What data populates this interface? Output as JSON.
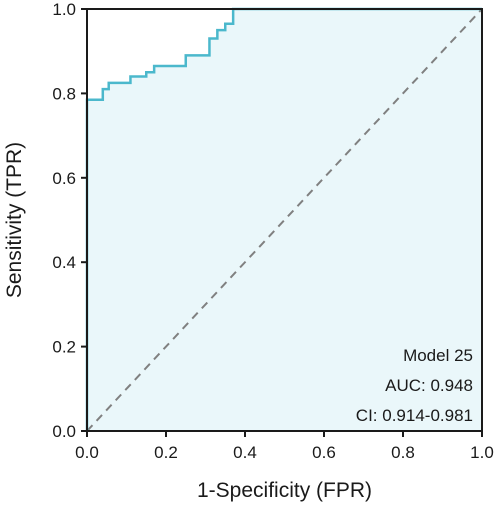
{
  "chart_data": {
    "type": "line",
    "xlabel": "1-Specificity (FPR)",
    "ylabel": "Sensitivity (TPR)",
    "xlim": [
      0,
      1
    ],
    "ylim": [
      0,
      1
    ],
    "x_ticks": [
      "0.0",
      "0.2",
      "0.4",
      "0.6",
      "0.8",
      "1.0"
    ],
    "y_ticks": [
      "0.0",
      "0.2",
      "0.4",
      "0.6",
      "0.8",
      "1.0"
    ],
    "grid": false,
    "series": [
      {
        "name": "",
        "color": "#4bb8cc",
        "fill": "#eaf7fa",
        "points": [
          [
            0.0,
            0.0
          ],
          [
            0.0,
            0.785
          ],
          [
            0.04,
            0.785
          ],
          [
            0.04,
            0.81
          ],
          [
            0.055,
            0.81
          ],
          [
            0.055,
            0.825
          ],
          [
            0.11,
            0.825
          ],
          [
            0.11,
            0.84
          ],
          [
            0.15,
            0.84
          ],
          [
            0.15,
            0.85
          ],
          [
            0.17,
            0.85
          ],
          [
            0.17,
            0.865
          ],
          [
            0.25,
            0.865
          ],
          [
            0.25,
            0.89
          ],
          [
            0.31,
            0.89
          ],
          [
            0.31,
            0.93
          ],
          [
            0.33,
            0.93
          ],
          [
            0.33,
            0.95
          ],
          [
            0.35,
            0.95
          ],
          [
            0.35,
            0.965
          ],
          [
            0.37,
            0.965
          ],
          [
            0.37,
            1.0
          ],
          [
            1.0,
            1.0
          ]
        ]
      }
    ],
    "reference_line": {
      "from": [
        0,
        0
      ],
      "to": [
        1,
        1
      ],
      "style": "dashed",
      "color": "#808080"
    },
    "annotations": [
      "Model 25",
      "AUC: 0.948",
      "CI: 0.914-0.981"
    ]
  }
}
